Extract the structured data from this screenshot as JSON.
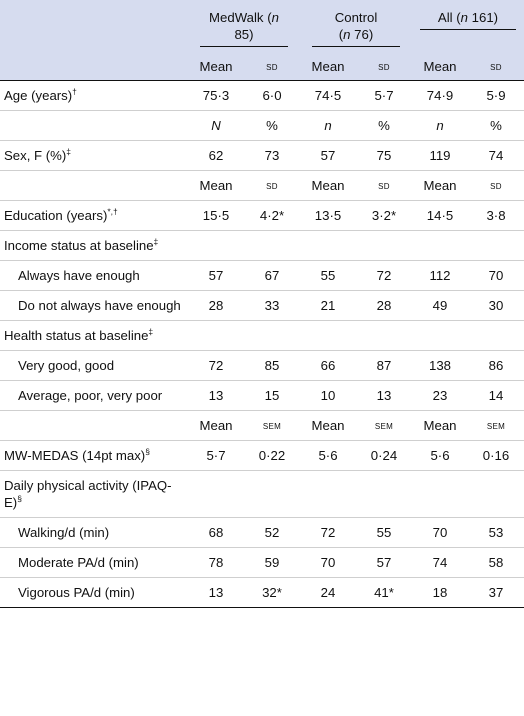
{
  "groups": {
    "medwalk": {
      "name": "MedWalk",
      "n_prefix": "(",
      "n_italic": "n",
      "n_value": " 85)"
    },
    "control": {
      "name": "Control",
      "n_prefix": "(",
      "n_italic": "n",
      "n_value": " 76)"
    },
    "all": {
      "name": "All",
      "n_prefix": "(",
      "n_italic": "n",
      "n_value": " 161)"
    }
  },
  "header_stats": {
    "mean": "Mean",
    "sd": "sd"
  },
  "rows": {
    "age": {
      "label": "Age (years)",
      "sup": "†",
      "v": [
        "75·3",
        "6·0",
        "74·5",
        "5·7",
        "74·9",
        "5·9"
      ]
    },
    "sub_n": {
      "v": [
        "N",
        "%",
        "n",
        "%",
        "n",
        "%"
      ]
    },
    "sex": {
      "label": "Sex, F (%)",
      "sup": "‡",
      "v": [
        "62",
        "73",
        "57",
        "75",
        "119",
        "74"
      ]
    },
    "sub_mean1": {
      "v": [
        "Mean",
        "sd",
        "Mean",
        "sd",
        "Mean",
        "sd"
      ]
    },
    "education": {
      "label": "Education (years)",
      "sup": "*,†",
      "v": [
        "15·5",
        "4·2*",
        "13·5",
        "3·2*",
        "14·5",
        "3·8"
      ]
    },
    "income": {
      "label": "Income status at baseline",
      "sup": "‡"
    },
    "income_enough": {
      "label": "Always have enough",
      "v": [
        "57",
        "67",
        "55",
        "72",
        "112",
        "70"
      ]
    },
    "income_not": {
      "label": "Do not always have enough",
      "v": [
        "28",
        "33",
        "21",
        "28",
        "49",
        "30"
      ]
    },
    "health": {
      "label": "Health status at baseline",
      "sup": "‡"
    },
    "health_good": {
      "label": "Very good, good",
      "v": [
        "72",
        "85",
        "66",
        "87",
        "138",
        "86"
      ]
    },
    "health_avg": {
      "label": "Average, poor, very poor",
      "v": [
        "13",
        "15",
        "10",
        "13",
        "23",
        "14"
      ]
    },
    "sub_mean2": {
      "v": [
        "Mean",
        "sem",
        "Mean",
        "sem",
        "Mean",
        "sem"
      ]
    },
    "medas": {
      "label": "MW-MEDAS (14pt max)",
      "sup": "§",
      "v": [
        "5·7",
        "0·22",
        "5·6",
        "0·24",
        "5·6",
        "0·16"
      ]
    },
    "activity": {
      "label": "Daily physical activity (IPAQ-E)",
      "sup": "§"
    },
    "walking": {
      "label": "Walking/d (min)",
      "v": [
        "68",
        "52",
        "72",
        "55",
        "70",
        "53"
      ]
    },
    "moderate": {
      "label": "Moderate PA/d (min)",
      "v": [
        "78",
        "59",
        "70",
        "57",
        "74",
        "58"
      ]
    },
    "vigorous": {
      "label": "Vigorous PA/d (min)",
      "v": [
        "13",
        "32*",
        "24",
        "41*",
        "18",
        "37"
      ]
    }
  }
}
